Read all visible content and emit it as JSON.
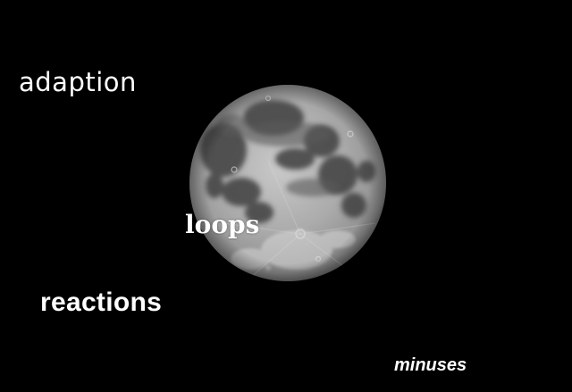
{
  "scene": {
    "background_color": "#000000",
    "subject": "full-moon"
  },
  "labels": {
    "adaption": "adaption",
    "loops": "loops",
    "reactions": "reactions",
    "minuses": "minuses"
  },
  "colors": {
    "text": "#ffffff",
    "moon_base": "#a9a9a9",
    "moon_maria": "#4a4a4a"
  }
}
